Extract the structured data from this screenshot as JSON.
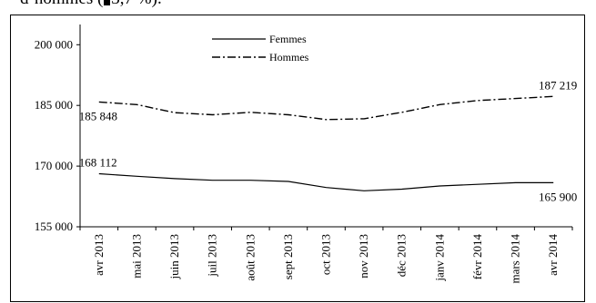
{
  "fragment": {
    "prefix": "d’hommes (",
    "suffix": "3,7 %)."
  },
  "chart_data": {
    "type": "line",
    "title": "",
    "xlabel": "",
    "ylabel": "",
    "categories": [
      "avr 2013",
      "mai 2013",
      "juin 2013",
      "juil 2013",
      "août 2013",
      "sept 2013",
      "oct 2013",
      "nov 2013",
      "déc 2013",
      "janv 2014",
      "févr 2014",
      "mars 2014",
      "avr 2014"
    ],
    "ylim": [
      155000,
      205000
    ],
    "yticks": [
      155000,
      170000,
      185000,
      200000
    ],
    "ytick_labels": [
      "155 000",
      "170 000",
      "185 000",
      "200 000"
    ],
    "grid": false,
    "legend": "top-center",
    "series": [
      {
        "name": "Femmes",
        "style": "solid",
        "color": "#000000",
        "values": [
          168112,
          167500,
          166900,
          166500,
          166500,
          166200,
          164700,
          163900,
          164300,
          165100,
          165500,
          165900,
          165900
        ]
      },
      {
        "name": "Hommes",
        "style": "dash-dot",
        "color": "#000000",
        "values": [
          185848,
          185200,
          183200,
          182700,
          183300,
          182700,
          181500,
          181700,
          183300,
          185200,
          186200,
          186700,
          187219
        ]
      }
    ],
    "annotations": [
      {
        "series": 0,
        "index": 0,
        "text": "168 112",
        "position": "above"
      },
      {
        "series": 0,
        "index": 12,
        "text": "165 900",
        "position": "below"
      },
      {
        "series": 1,
        "index": 0,
        "text": "185 848",
        "position": "below"
      },
      {
        "series": 1,
        "index": 12,
        "text": "187 219",
        "position": "above"
      }
    ]
  }
}
